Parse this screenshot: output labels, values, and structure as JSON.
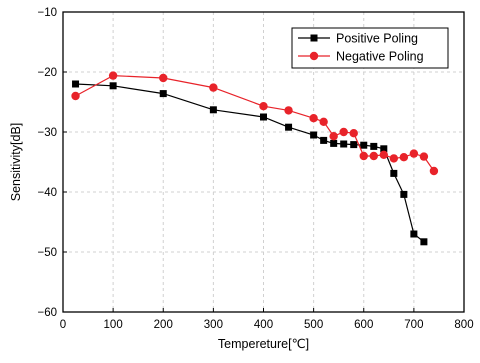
{
  "chart_data": {
    "type": "line",
    "title": "",
    "xlabel": "Tempereture[℃]",
    "ylabel": "Sensitivity[dB]",
    "xlim": [
      0,
      800
    ],
    "ylim": [
      -60,
      -10
    ],
    "xticks": [
      0,
      100,
      200,
      300,
      400,
      500,
      600,
      700,
      800
    ],
    "yticks": [
      -60,
      -50,
      -40,
      -30,
      -20,
      -10
    ],
    "grid": true,
    "legend_position": "top-right",
    "series": [
      {
        "name": "Positive Poling",
        "color": "#000000",
        "marker": "square",
        "x": [
          25,
          100,
          200,
          300,
          400,
          450,
          500,
          520,
          540,
          560,
          580,
          600,
          620,
          640,
          660,
          680,
          700,
          720
        ],
        "y": [
          -22.0,
          -22.3,
          -23.6,
          -26.3,
          -27.5,
          -29.2,
          -30.5,
          -31.4,
          -31.9,
          -32.0,
          -32.1,
          -32.2,
          -32.4,
          -32.8,
          -36.9,
          -40.4,
          -47.0,
          -48.3
        ]
      },
      {
        "name": "Negative Poling",
        "color": "#e8232a",
        "marker": "circle",
        "x": [
          25,
          100,
          200,
          300,
          400,
          450,
          500,
          520,
          540,
          560,
          580,
          600,
          620,
          640,
          660,
          680,
          700,
          720,
          740
        ],
        "y": [
          -24.0,
          -20.6,
          -21.0,
          -22.6,
          -25.7,
          -26.4,
          -27.7,
          -28.3,
          -30.7,
          -30.0,
          -30.2,
          -34.0,
          -34.0,
          -33.8,
          -34.4,
          -34.2,
          -33.6,
          -34.1,
          -36.5
        ]
      }
    ]
  }
}
